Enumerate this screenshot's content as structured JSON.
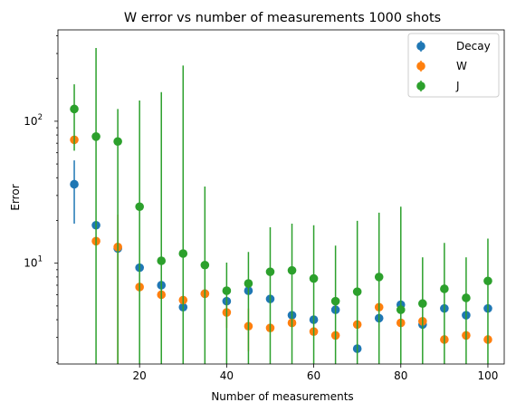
{
  "chart_data": {
    "type": "scatter",
    "title": "W error vs number of measurements 1000 shots",
    "xlabel": "Number of measurements",
    "ylabel": "Error",
    "xlim": [
      1.25,
      103.75
    ],
    "ylim": [
      1.95,
      440
    ],
    "yscale": "log",
    "x_ticks": [
      20,
      40,
      60,
      80,
      100
    ],
    "y_ticks": [
      {
        "value": 10,
        "label": "10",
        "exp": "1"
      },
      {
        "value": 100,
        "label": "10",
        "exp": "2"
      }
    ],
    "legend_position": "upper right",
    "x": [
      5,
      10,
      15,
      20,
      25,
      30,
      35,
      40,
      45,
      50,
      55,
      60,
      65,
      70,
      75,
      80,
      85,
      90,
      95,
      100
    ],
    "series": [
      {
        "name": "Decay",
        "color": "#1f77b4",
        "values": [
          36.0,
          18.5,
          12.7,
          9.3,
          7.0,
          4.9,
          6.1,
          5.4,
          6.4,
          5.6,
          4.3,
          4.0,
          4.7,
          2.5,
          4.1,
          5.1,
          3.7,
          4.8,
          4.3,
          4.8
        ],
        "err_lower": [
          17.0,
          0,
          0,
          0,
          0,
          0,
          0,
          0,
          0,
          0,
          0,
          0,
          0,
          0,
          0,
          0,
          0,
          0,
          0,
          0
        ],
        "err_upper": [
          17.0,
          0,
          0,
          0,
          0,
          0,
          0,
          0,
          0,
          0,
          0,
          0,
          0,
          0,
          0,
          0,
          0,
          0,
          0,
          0
        ]
      },
      {
        "name": "W",
        "color": "#ff7f0e",
        "values": [
          74,
          14.3,
          13.0,
          6.8,
          6.0,
          5.5,
          6.1,
          4.5,
          3.6,
          3.5,
          3.8,
          3.3,
          3.1,
          3.7,
          4.9,
          3.8,
          3.9,
          2.9,
          3.1,
          2.9
        ],
        "err_lower": [
          0,
          0,
          12.0,
          0,
          0,
          0,
          0,
          1.0,
          1.2,
          0,
          0,
          0,
          0,
          0,
          0,
          0,
          0,
          0,
          0,
          0
        ],
        "err_upper": [
          0,
          0,
          9.0,
          0,
          0,
          0,
          0,
          1.0,
          1.2,
          0,
          0,
          0,
          0,
          0,
          0,
          0,
          0,
          0,
          0,
          0
        ]
      },
      {
        "name": "J",
        "color": "#2ca02c",
        "values": [
          122,
          78,
          72,
          25,
          10.4,
          11.7,
          9.7,
          6.4,
          7.2,
          8.7,
          8.9,
          7.8,
          5.4,
          6.3,
          8.0,
          4.7,
          5.2,
          6.6,
          5.7,
          7.5
        ],
        "err_lower": [
          60,
          78,
          72,
          25,
          10.4,
          11.7,
          9.7,
          6.4,
          7.2,
          8.7,
          8.9,
          7.8,
          5.4,
          6.3,
          8.0,
          4.7,
          5.2,
          6.6,
          5.7,
          7.5
        ],
        "err_upper": [
          60,
          250,
          50,
          115,
          150,
          235,
          25,
          3.7,
          4.8,
          9.2,
          10.1,
          10.7,
          7.9,
          13.6,
          14.7,
          20.3,
          5.8,
          7.3,
          5.3,
          7.4
        ]
      }
    ]
  }
}
